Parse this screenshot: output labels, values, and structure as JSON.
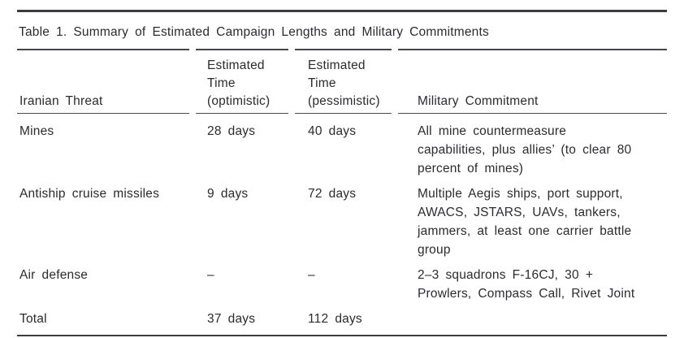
{
  "table": {
    "title": "Table 1. Summary of Estimated Campaign Lengths and Military Commitments",
    "columns": {
      "threat": "Iranian Threat",
      "optimistic": [
        "Estimated",
        "Time",
        "(optimistic)"
      ],
      "pessimistic": [
        "Estimated",
        "Time",
        "(pessimistic)"
      ],
      "commitment": "Military Commitment"
    },
    "rows": [
      {
        "threat": "Mines",
        "optimistic": "28 days",
        "pessimistic": "40 days",
        "commitment": [
          "All mine countermeasure",
          "capabilities, plus allies’ (to clear 80",
          "percent of mines)"
        ]
      },
      {
        "threat": "Antiship cruise missiles",
        "optimistic": "9 days",
        "pessimistic": "72 days",
        "commitment": [
          "Multiple Aegis ships, port support,",
          "AWACS, JSTARS, UAVs, tankers,",
          "jammers, at least one carrier battle",
          "group"
        ]
      },
      {
        "threat": "Air defense",
        "optimistic": "–",
        "pessimistic": "–",
        "commitment": [
          "2–3 squadrons F-16CJ, 30 +",
          "Prowlers, Compass Call, Rivet Joint"
        ]
      },
      {
        "threat": "Total",
        "optimistic": "37 days",
        "pessimistic": "112 days",
        "commitment": []
      }
    ],
    "colors": {
      "text": "#2b2b30",
      "rule": "#44444a",
      "background": "#ffffff"
    }
  }
}
